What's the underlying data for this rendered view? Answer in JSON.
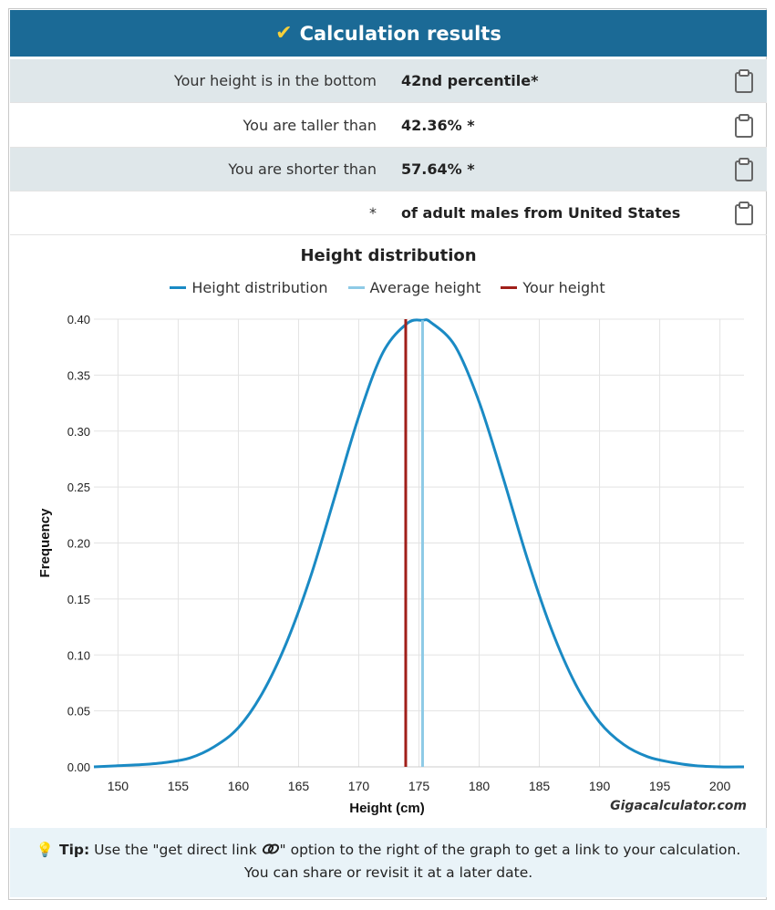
{
  "header": {
    "title": "Calculation results"
  },
  "results": [
    {
      "label": "Your height is in the bottom",
      "value": "42nd percentile*"
    },
    {
      "label": "You are taller than",
      "value": "42.36% *"
    },
    {
      "label": "You are shorter than",
      "value": "57.64% *"
    },
    {
      "label": "*",
      "value": "of adult males from United States"
    }
  ],
  "icons": {
    "copy": "clipboard-icon",
    "tip": "lightbulb-icon",
    "link": "link-icon"
  },
  "colors": {
    "header": "#1b6a96",
    "distribution": "#1a8ac4",
    "average": "#8ecae6",
    "yours": "#a01f1a"
  },
  "chart_data": {
    "type": "line",
    "title": "Height distribution",
    "xlabel": "Height (cm)",
    "ylabel": "Frequency",
    "xlim": [
      148,
      202
    ],
    "ylim": [
      0,
      0.4
    ],
    "xticks": [
      150,
      155,
      160,
      165,
      170,
      175,
      180,
      185,
      190,
      195,
      200
    ],
    "yticks": [
      "0.00",
      "0.05",
      "0.10",
      "0.15",
      "0.20",
      "0.25",
      "0.30",
      "0.35",
      "0.40"
    ],
    "grid": true,
    "legend_position": "top",
    "series": [
      {
        "name": "Height distribution",
        "x": [
          148,
          150,
          152,
          154,
          156,
          158,
          160,
          162,
          164,
          166,
          168,
          170,
          172,
          174,
          175.3,
          176,
          178,
          180,
          182,
          184,
          186,
          188,
          190,
          192,
          194,
          196,
          198,
          200,
          202
        ],
        "y": [
          0.0,
          0.001,
          0.002,
          0.004,
          0.008,
          0.018,
          0.035,
          0.066,
          0.111,
          0.17,
          0.241,
          0.313,
          0.37,
          0.396,
          0.399,
          0.397,
          0.376,
          0.326,
          0.258,
          0.186,
          0.123,
          0.074,
          0.04,
          0.02,
          0.009,
          0.004,
          0.001,
          0.0,
          0.0
        ]
      },
      {
        "name": "Average height",
        "x": 175.3
      },
      {
        "name": "Your height",
        "x": 173.9
      }
    ],
    "watermark": "Gigacalculator.com"
  },
  "tip": {
    "label": "Tip:",
    "text_before": "Use the \"get direct link",
    "text_after": "\" option to the right of the graph to get a link to your calculation. You can share or revisit it at a later date."
  }
}
